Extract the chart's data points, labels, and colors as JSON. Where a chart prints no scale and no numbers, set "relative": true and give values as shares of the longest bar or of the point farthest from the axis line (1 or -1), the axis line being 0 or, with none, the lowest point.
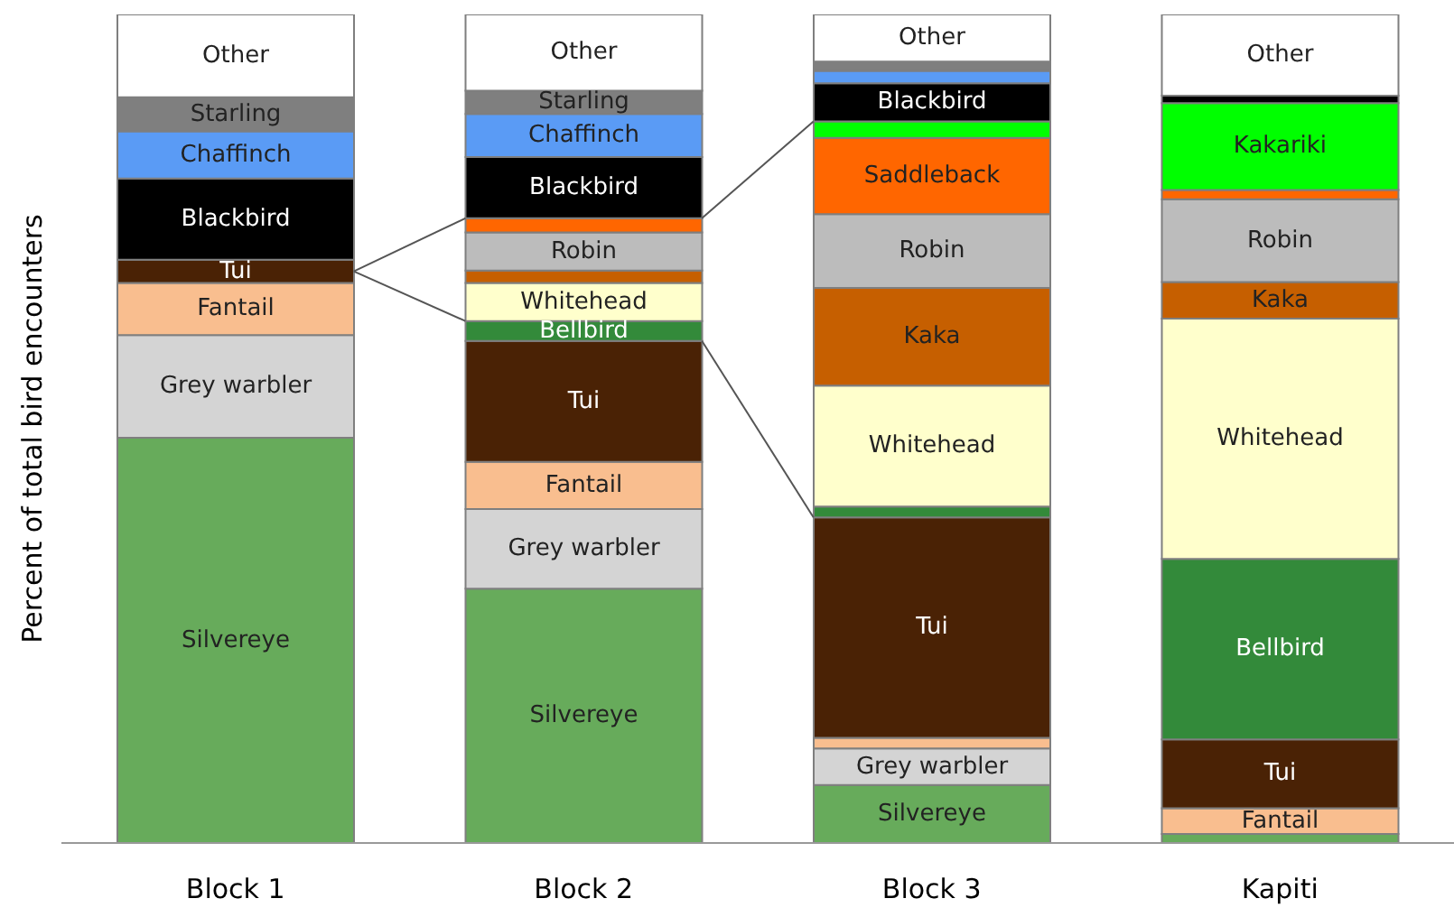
{
  "chart_data": {
    "type": "bar",
    "stacked": true,
    "relative": true,
    "ylabel": "Percent of total bird encounters",
    "categories": [
      "Block 1",
      "Block 2",
      "Block 3",
      "Kapiti"
    ],
    "series": [
      {
        "name": "Silvereye",
        "color": "#67ab5b",
        "values": [
          0.489,
          0.307,
          0.07,
          0.011
        ]
      },
      {
        "name": "Grey warbler",
        "color": "#d4d4d4",
        "values": [
          0.124,
          0.096,
          0.044,
          0
        ]
      },
      {
        "name": "Fantail",
        "color": "#f9be8f",
        "values": [
          0.063,
          0.057,
          0.013,
          0.031
        ]
      },
      {
        "name": "Tui",
        "color": "#4a2205",
        "values": [
          0.028,
          0.146,
          0.266,
          0.083
        ]
      },
      {
        "name": "Bellbird",
        "color": "#338a3a",
        "values": [
          0,
          0.024,
          0.013,
          0.218
        ]
      },
      {
        "name": "Whitehead",
        "color": "#ffffcc",
        "values": [
          0,
          0.046,
          0.146,
          0.29
        ]
      },
      {
        "name": "Kaka",
        "color": "#c65f00",
        "values": [
          0,
          0.015,
          0.118,
          0.044
        ]
      },
      {
        "name": "Robin",
        "color": "#bcbcbc",
        "values": [
          0,
          0.046,
          0.089,
          0.1
        ]
      },
      {
        "name": "Saddleback",
        "color": "#ff6600",
        "values": [
          0,
          0.017,
          0.092,
          0.011
        ]
      },
      {
        "name": "Kakariki",
        "color": "#00ff00",
        "values": [
          0,
          0,
          0.02,
          0.105
        ]
      },
      {
        "name": "Blackbird",
        "color": "#000000",
        "values": [
          0.098,
          0.074,
          0.046,
          0.009
        ]
      },
      {
        "name": "Chaffinch",
        "color": "#5a9bf5",
        "values": [
          0.057,
          0.052,
          0.015,
          0
        ]
      },
      {
        "name": "Starling",
        "color": "#7f7f7f",
        "values": [
          0.041,
          0.028,
          0.011,
          0
        ]
      },
      {
        "name": "Other",
        "color": "#ffffff",
        "values": [
          0.1,
          0.092,
          0.057,
          0.098
        ]
      }
    ]
  }
}
